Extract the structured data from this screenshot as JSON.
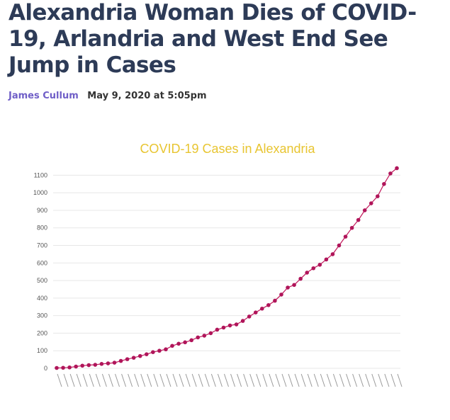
{
  "article": {
    "headline": "Alexandria Woman Dies of COVID-19, Arlandria and West End See Jump in Cases",
    "author": "James Cullum",
    "date": "May 9, 2020 at 5:05pm"
  },
  "chart_data": {
    "type": "line",
    "title": "COVID-19 Cases in Alexandria",
    "xlabel": "",
    "ylabel": "",
    "ylim": [
      0,
      1150
    ],
    "yticks": [
      0,
      100,
      200,
      300,
      400,
      500,
      600,
      700,
      800,
      900,
      1000,
      1100
    ],
    "grid": true,
    "colors": {
      "line": "#c2185b",
      "marker": "#b0155a",
      "title": "#e8c531",
      "grid": "#e7e7e7"
    },
    "series": [
      {
        "values": [
          2,
          3,
          5,
          10,
          15,
          18,
          20,
          25,
          28,
          32,
          42,
          52,
          60,
          70,
          80,
          92,
          100,
          108,
          128,
          140,
          148,
          160,
          176,
          186,
          200,
          220,
          232,
          244,
          250,
          270,
          295,
          318,
          340,
          360,
          385,
          420,
          460,
          475,
          510,
          545,
          570,
          590,
          620,
          650,
          700,
          750,
          800,
          845,
          900,
          940,
          980,
          1050,
          1110,
          1140
        ]
      }
    ]
  }
}
